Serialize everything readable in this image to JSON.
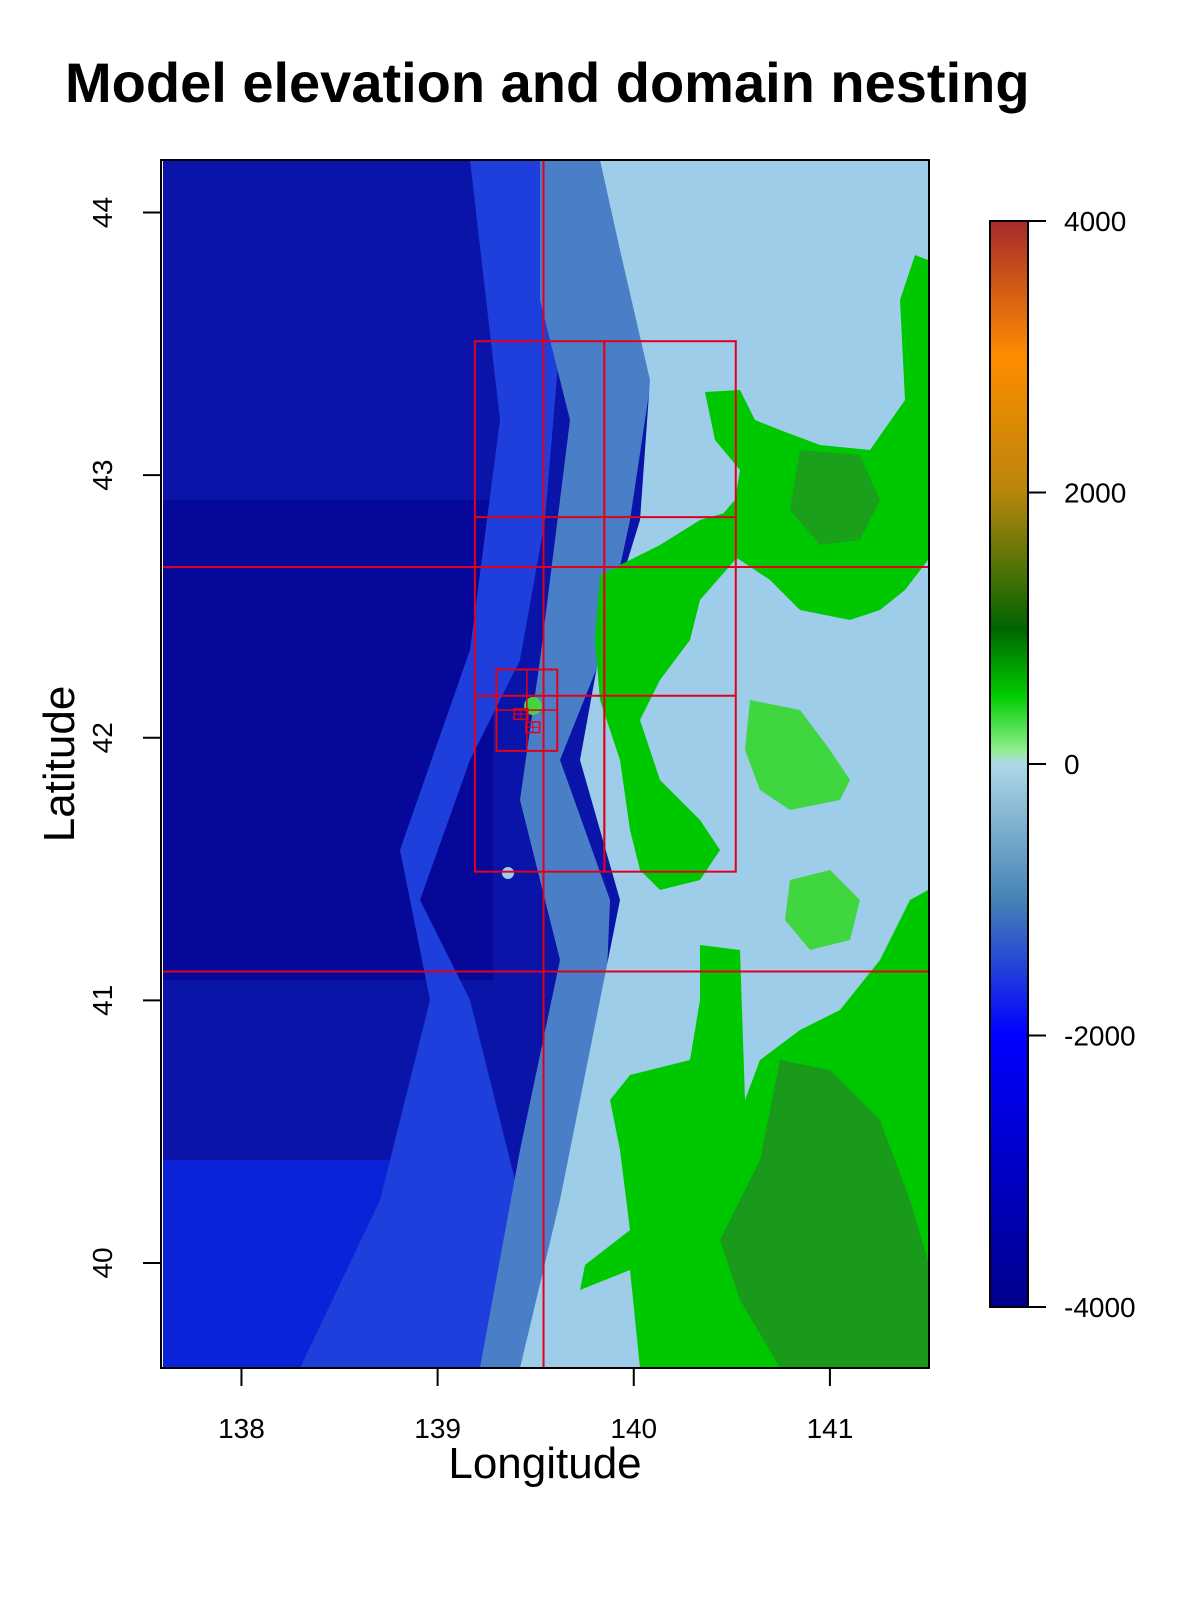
{
  "chart_data": {
    "type": "heatmap",
    "title": "Model elevation and domain nesting",
    "xlabel": "Longitude",
    "ylabel": "Latitude",
    "xlim": [
      137.6,
      141.5
    ],
    "ylim": [
      39.6,
      44.2
    ],
    "x_ticks": [
      138,
      139,
      140,
      141
    ],
    "y_ticks": [
      40,
      41,
      42,
      43,
      44
    ],
    "colorbar": {
      "ticks": [
        4000,
        2000,
        0,
        -2000,
        -4000
      ],
      "range": [
        -4000,
        4000
      ],
      "stops": [
        {
          "value": -4000,
          "color": "#00008B"
        },
        {
          "value": -2000,
          "color": "#0000FF"
        },
        {
          "value": -1000,
          "color": "#4682B4"
        },
        {
          "value": 0,
          "color": "#ADD8E6"
        },
        {
          "value": 100,
          "color": "#90EE90"
        },
        {
          "value": 500,
          "color": "#00CD00"
        },
        {
          "value": 1000,
          "color": "#006400"
        },
        {
          "value": 2000,
          "color": "#B8860B"
        },
        {
          "value": 3000,
          "color": "#FF8C00"
        },
        {
          "value": 4000,
          "color": "#A52A2A"
        }
      ]
    },
    "domain_color": "#E3001B",
    "grid_lines": {
      "lon": [
        139.54
      ],
      "lat": [
        42.65,
        41.11
      ]
    },
    "nested_domains": [
      {
        "level": 2,
        "lon": [
          139.19,
          139.85
        ],
        "lat": [
          41.49,
          43.51
        ]
      },
      {
        "level": 2,
        "lon": [
          139.85,
          140.52
        ],
        "lat": [
          41.49,
          43.51
        ]
      },
      {
        "level": 3,
        "lon": [
          139.19,
          140.52
        ],
        "lat": [
          42.84,
          42.84
        ]
      },
      {
        "level": 3,
        "lon": [
          139.19,
          140.52
        ],
        "lat": [
          42.16,
          42.16
        ]
      },
      {
        "level": 4,
        "lon": [
          139.3,
          139.61
        ],
        "lat": [
          41.95,
          42.26
        ]
      },
      {
        "level": 5,
        "lon": [
          139.39,
          139.46
        ],
        "lat": [
          42.07,
          42.11
        ]
      },
      {
        "level": 5,
        "lon": [
          139.45,
          139.52
        ],
        "lat": [
          42.02,
          42.06
        ]
      }
    ]
  }
}
